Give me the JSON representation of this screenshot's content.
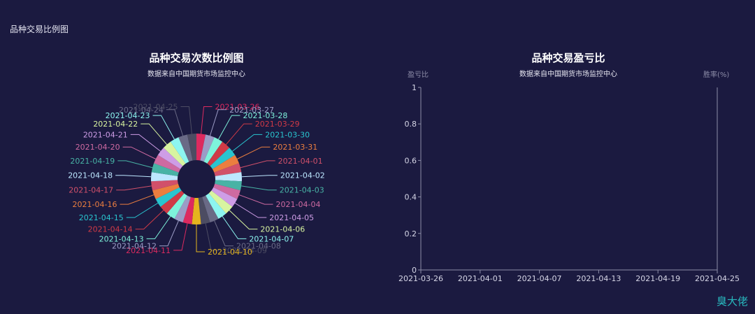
{
  "page": {
    "title": "品种交易比例图",
    "watermark": "臭大佬"
  },
  "chart_data": [
    {
      "type": "pie",
      "variant": "donut",
      "title": "品种交易次数比例图",
      "subtitle": "数据来自中国期货市场监控中心",
      "legend": "none",
      "categories": [
        "2021-03-26",
        "2021-03-27",
        "2021-03-28",
        "2021-03-29",
        "2021-03-30",
        "2021-03-31",
        "2021-04-01",
        "2021-04-02",
        "2021-04-03",
        "2021-04-04",
        "2021-04-05",
        "2021-04-06",
        "2021-04-07",
        "2021-04-08",
        "2021-04-09",
        "2021-04-10",
        "2021-04-11",
        "2021-04-12",
        "2021-04-13",
        "2021-04-14",
        "2021-04-15",
        "2021-04-16",
        "2021-04-17",
        "2021-04-18",
        "2021-04-19",
        "2021-04-20",
        "2021-04-21",
        "2021-04-22",
        "2021-04-23",
        "2021-04-24",
        "2021-04-25"
      ],
      "values": [
        1,
        1,
        1,
        1,
        1,
        1,
        1,
        1,
        1,
        1,
        1,
        1,
        1,
        1,
        1,
        1,
        1,
        1,
        1,
        1,
        1,
        1,
        1,
        1,
        1,
        1,
        1,
        1,
        1,
        1,
        1
      ],
      "colors": [
        "#dd2a5f",
        "#9c9cc6",
        "#7ef3db",
        "#d03a46",
        "#29c5cf",
        "#eb7e3f",
        "#d1506a",
        "#bde7ff",
        "#48b3a5",
        "#ce6aa1",
        "#ce9de6",
        "#d8f4a0",
        "#8df5f0",
        "#6a6a86",
        "#4c4c62",
        "#e5b51e",
        "#dd2a5f",
        "#9c9cc6",
        "#7ef3db",
        "#d03a46",
        "#29c5cf",
        "#eb7e3f",
        "#d1506a",
        "#bde7ff",
        "#48b3a5",
        "#ce6aa1",
        "#ce9de6",
        "#d8f4a0",
        "#8df5f0",
        "#6a6a86",
        "#4c4c62"
      ]
    },
    {
      "type": "bar",
      "title": "品种交易盈亏比",
      "subtitle": "数据来自中国期货市场监控中心",
      "ylabel": "盈亏比",
      "y2label": "胜率(%)",
      "ylim": [
        0,
        1
      ],
      "yticks": [
        "0",
        "0.2",
        "0.4",
        "0.6",
        "0.8",
        "1"
      ],
      "categories": [
        "2021-03-26",
        "2021-04-01",
        "2021-04-07",
        "2021-04-13",
        "2021-04-19",
        "2021-04-25"
      ],
      "series": []
    }
  ]
}
